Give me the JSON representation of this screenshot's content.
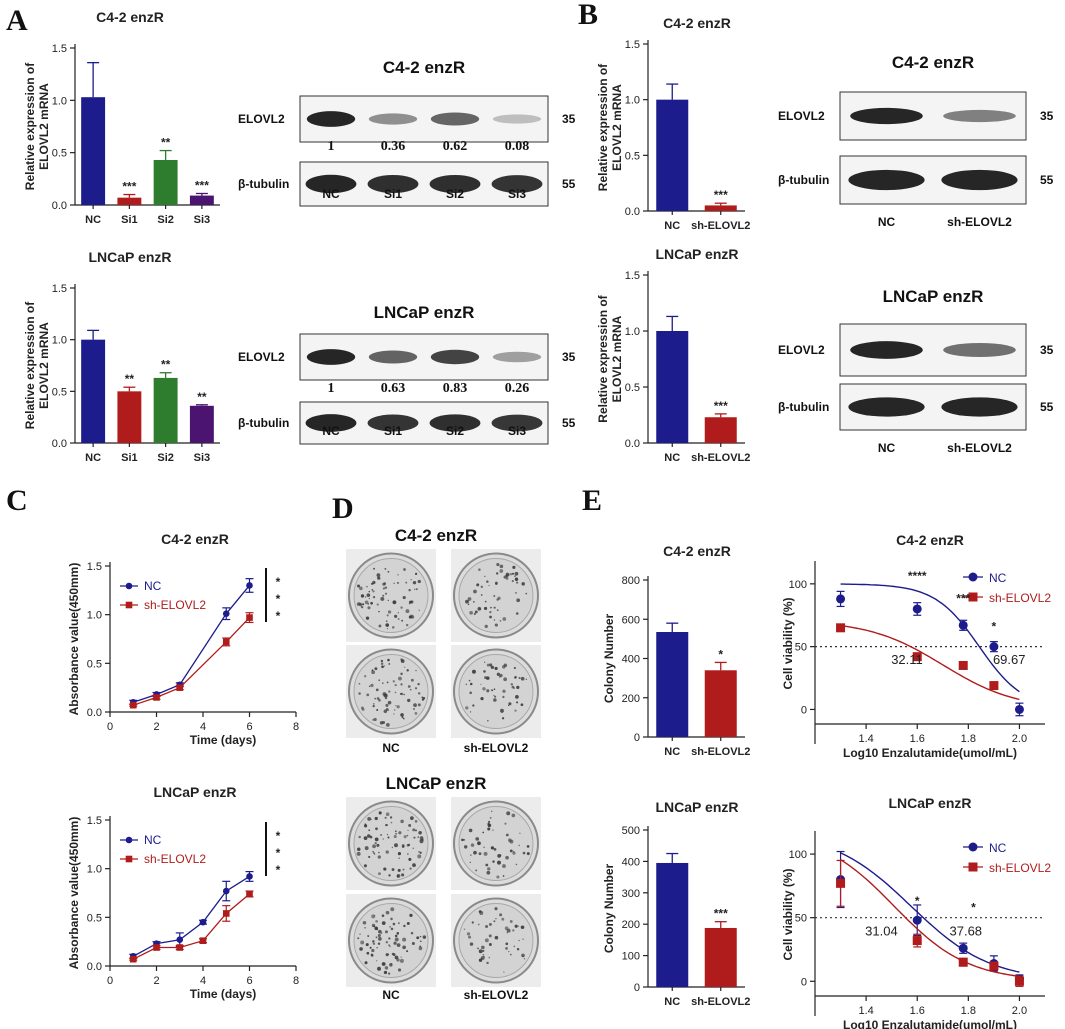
{
  "panel_letters": [
    "A",
    "B",
    "C",
    "D",
    "E"
  ],
  "colors": {
    "navy": "#1c1c8c",
    "red": "#b01c1c",
    "green": "#2e7d2e",
    "purple": "#4a1470",
    "blot": "#262626"
  },
  "chart_data": [
    {
      "id": "A1",
      "type": "bar",
      "title": "C4-2 enzR",
      "ylabel": "Relative expression of ELOVL2 mRNA",
      "categories": [
        "NC",
        "Si1",
        "Si2",
        "Si3"
      ],
      "values": [
        1.03,
        0.07,
        0.43,
        0.09
      ],
      "errors": [
        0.33,
        0.03,
        0.09,
        0.02
      ],
      "sig": [
        "",
        "***",
        "**",
        "***"
      ],
      "ylim": [
        0,
        1.5
      ],
      "yticks": [
        "0.0",
        "0.5",
        "1.0",
        "1.5"
      ],
      "colors": [
        "navy",
        "red",
        "green",
        "purple"
      ]
    },
    {
      "id": "A2",
      "type": "bar",
      "title": "LNCaP enzR",
      "ylabel": "Relative expression of ELOVL2 mRNA",
      "categories": [
        "NC",
        "Si1",
        "Si2",
        "Si3"
      ],
      "values": [
        1.0,
        0.5,
        0.63,
        0.36
      ],
      "errors": [
        0.09,
        0.04,
        0.05,
        0.01
      ],
      "sig": [
        "",
        "**",
        "**",
        "**"
      ],
      "ylim": [
        0,
        1.5
      ],
      "yticks": [
        "0.0",
        "0.5",
        "1.0",
        "1.5"
      ],
      "colors": [
        "navy",
        "red",
        "green",
        "purple"
      ]
    },
    {
      "id": "B1",
      "type": "bar",
      "title": "C4-2 enzR",
      "ylabel": "Relative expression of ELOVL2 mRNA",
      "categories": [
        "NC",
        "sh-ELOVL2"
      ],
      "values": [
        1.0,
        0.05
      ],
      "errors": [
        0.14,
        0.02
      ],
      "sig": [
        "",
        "***"
      ],
      "ylim": [
        0,
        1.5
      ],
      "yticks": [
        "0.0",
        "0.5",
        "1.0",
        "1.5"
      ],
      "colors": [
        "navy",
        "red"
      ]
    },
    {
      "id": "B2",
      "type": "bar",
      "title": "LNCaP enzR",
      "ylabel": "Relative expression of ELOVL2 mRNA",
      "categories": [
        "NC",
        "sh-ELOVL2"
      ],
      "values": [
        1.0,
        0.23
      ],
      "errors": [
        0.13,
        0.03
      ],
      "sig": [
        "",
        "***"
      ],
      "ylim": [
        0,
        1.5
      ],
      "yticks": [
        "0.0",
        "0.5",
        "1.0",
        "1.5"
      ],
      "colors": [
        "navy",
        "red"
      ]
    },
    {
      "id": "C1",
      "type": "line",
      "title": "C4-2 enzR",
      "xlabel": "Time (days)",
      "ylabel": "Absorbance value(450mm)",
      "x": [
        1,
        2,
        3,
        5,
        6
      ],
      "xlim": [
        0,
        8
      ],
      "xticks": [
        "0",
        "2",
        "4",
        "6",
        "8"
      ],
      "ylim": [
        0,
        1.5
      ],
      "yticks": [
        "0.0",
        "0.5",
        "1.0",
        "1.5"
      ],
      "series": [
        {
          "name": "NC",
          "values": [
            0.1,
            0.18,
            0.28,
            1.01,
            1.3
          ],
          "errors": [
            0.02,
            0.02,
            0.02,
            0.06,
            0.07
          ],
          "color": "navy",
          "marker": "circle"
        },
        {
          "name": "sh-ELOVL2",
          "values": [
            0.07,
            0.15,
            0.25,
            0.72,
            0.97
          ],
          "errors": [
            0.01,
            0.02,
            0.02,
            0.04,
            0.05
          ],
          "color": "red",
          "marker": "square"
        }
      ],
      "sig": "***"
    },
    {
      "id": "C2",
      "type": "line",
      "title": "LNCaP enzR",
      "xlabel": "Time (days)",
      "ylabel": "Absorbance value(450mm)",
      "x": [
        1,
        2,
        3,
        4,
        5,
        6
      ],
      "xlim": [
        0,
        8
      ],
      "xticks": [
        "0",
        "2",
        "4",
        "6",
        "8"
      ],
      "ylim": [
        0,
        1.5
      ],
      "yticks": [
        "0.0",
        "0.5",
        "1.0",
        "1.5"
      ],
      "series": [
        {
          "name": "NC",
          "values": [
            0.1,
            0.23,
            0.27,
            0.45,
            0.77,
            0.92
          ],
          "errors": [
            0.02,
            0.02,
            0.07,
            0.02,
            0.1,
            0.05
          ],
          "color": "navy",
          "marker": "circle"
        },
        {
          "name": "sh-ELOVL2",
          "values": [
            0.07,
            0.19,
            0.19,
            0.26,
            0.54,
            0.74
          ],
          "errors": [
            0.01,
            0.02,
            0.02,
            0.02,
            0.08,
            0.03
          ],
          "color": "red",
          "marker": "square"
        }
      ],
      "sig": "***"
    },
    {
      "id": "E1",
      "type": "bar",
      "title": "C4-2 enzR",
      "ylabel": "Colony Number",
      "categories": [
        "NC",
        "sh-ELOVL2"
      ],
      "values": [
        535,
        340
      ],
      "errors": [
        45,
        40
      ],
      "sig": [
        "",
        "*"
      ],
      "ylim": [
        0,
        800
      ],
      "yticks": [
        "0",
        "200",
        "400",
        "600",
        "800"
      ],
      "colors": [
        "navy",
        "red"
      ]
    },
    {
      "id": "E2",
      "type": "bar",
      "title": "LNCaP enzR",
      "ylabel": "Colony Number",
      "categories": [
        "NC",
        "sh-ELOVL2"
      ],
      "values": [
        395,
        188
      ],
      "errors": [
        30,
        20
      ],
      "sig": [
        "",
        "***"
      ],
      "ylim": [
        0,
        500
      ],
      "yticks": [
        "0",
        "100",
        "200",
        "300",
        "400",
        "500"
      ],
      "colors": [
        "navy",
        "red"
      ]
    },
    {
      "id": "E3",
      "type": "scatter",
      "title": "C4-2 enzR",
      "xlabel": "Log10 Enzalutamide(umol/mL)",
      "ylabel": "Cell viability (%)",
      "xlim": [
        1.2,
        2.1
      ],
      "xticks": [
        "1.4",
        "1.6",
        "1.8",
        "2.0"
      ],
      "ylim": [
        -10,
        115
      ],
      "yticks": [
        "0",
        "50",
        "100"
      ],
      "refline": 50,
      "series": [
        {
          "name": "NC",
          "x": [
            1.3,
            1.6,
            1.78,
            1.9,
            2.0
          ],
          "values": [
            88,
            80,
            67,
            50,
            0
          ],
          "errors": [
            6,
            5,
            4,
            4,
            5
          ],
          "color": "navy",
          "marker": "circle",
          "fit": {
            "top": 100,
            "bottom": 0,
            "logic50": 1.843,
            "hill": 5
          }
        },
        {
          "name": "sh-ELOVL2",
          "x": [
            1.3,
            1.6,
            1.78,
            1.9
          ],
          "values": [
            65,
            42,
            35,
            19
          ],
          "errors": [
            2,
            2,
            2,
            2
          ],
          "color": "red",
          "marker": "square",
          "fit": {
            "top": 71,
            "bottom": 0,
            "logic50": 1.7,
            "hill": 3
          }
        }
      ],
      "sig": [
        {
          "x": 1.6,
          "y": 103,
          "text": "****"
        },
        {
          "x": 1.78,
          "y": 85,
          "text": "***"
        },
        {
          "x": 1.9,
          "y": 63,
          "text": "*"
        }
      ],
      "ic50": [
        {
          "x": 1.56,
          "y": 36,
          "text": "32.11"
        },
        {
          "x": 1.96,
          "y": 36,
          "text": "69.67"
        }
      ]
    },
    {
      "id": "E4",
      "type": "scatter",
      "title": "LNCaP enzR",
      "xlabel": "Log10 Enzalutamide(umol/mL)",
      "ylabel": "Cell viability (%)",
      "xlim": [
        1.2,
        2.1
      ],
      "xticks": [
        "1.4",
        "1.6",
        "1.8",
        "2.0"
      ],
      "ylim": [
        -10,
        115
      ],
      "yticks": [
        "0",
        "50",
        "100"
      ],
      "refline": 50,
      "series": [
        {
          "name": "NC",
          "x": [
            1.3,
            1.6,
            1.78,
            1.9,
            2.0
          ],
          "values": [
            80,
            48,
            26,
            14,
            2
          ],
          "errors": [
            22,
            12,
            4,
            6,
            3
          ],
          "color": "navy",
          "marker": "circle",
          "fit": {
            "top": 118,
            "bottom": 0,
            "logic50": 1.576,
            "hill": 2.8
          }
        },
        {
          "name": "sh-ELOVL2",
          "x": [
            1.3,
            1.6,
            1.78,
            1.9,
            2.0
          ],
          "values": [
            77,
            32,
            15,
            12,
            0
          ],
          "errors": [
            18,
            5,
            3,
            3,
            4
          ],
          "color": "red",
          "marker": "square",
          "fit": {
            "top": 118,
            "bottom": 0,
            "logic50": 1.51,
            "hill": 3
          }
        }
      ],
      "sig": [
        {
          "x": 1.6,
          "y": 60,
          "text": "*"
        },
        {
          "x": 1.82,
          "y": 55,
          "text": "*"
        }
      ],
      "ic50": [
        {
          "x": 1.46,
          "y": 36,
          "text": "31.04"
        },
        {
          "x": 1.79,
          "y": 36,
          "text": "37.68"
        }
      ]
    }
  ],
  "blots": [
    {
      "id": "WB1",
      "title": "C4-2 enzR",
      "target": "ELOVL2",
      "target_kda": "35",
      "loading": "β-tubulin",
      "loading_kda": "55",
      "lanes": [
        "NC",
        "Si1",
        "Si2",
        "Si3"
      ],
      "quant": [
        "1",
        "0.36",
        "0.62",
        "0.08"
      ],
      "target_intensity": [
        1,
        0.36,
        0.62,
        0.08
      ],
      "loading_intensity": [
        1,
        0.95,
        0.95,
        0.92
      ]
    },
    {
      "id": "WB2",
      "title": "LNCaP enzR",
      "target": "ELOVL2",
      "target_kda": "35",
      "loading": "β-tubulin",
      "loading_kda": "55",
      "lanes": [
        "NC",
        "Si1",
        "Si2",
        "Si3"
      ],
      "quant": [
        "1",
        "0.63",
        "0.83",
        "0.26"
      ],
      "target_intensity": [
        1,
        0.63,
        0.83,
        0.26
      ],
      "loading_intensity": [
        1,
        0.92,
        0.95,
        0.9
      ]
    },
    {
      "id": "WB3",
      "title": "C4-2 enzR",
      "target": "ELOVL2",
      "target_kda": "35",
      "loading": "β-tubulin",
      "loading_kda": "55",
      "lanes": [
        "NC",
        "sh-ELOVL2"
      ],
      "quant": [],
      "target_intensity": [
        1,
        0.45
      ],
      "loading_intensity": [
        1,
        1
      ]
    },
    {
      "id": "WB4",
      "title": "LNCaP enzR",
      "target": "ELOVL2",
      "target_kda": "35",
      "loading": "β-tubulin",
      "loading_kda": "55",
      "lanes": [
        "NC",
        "sh-ELOVL2"
      ],
      "quant": [],
      "target_intensity": [
        1,
        0.55
      ],
      "loading_intensity": [
        1,
        1
      ]
    }
  ],
  "colony_plates": [
    {
      "title": "C4-2 enzR",
      "lanes": [
        "NC",
        "sh-ELOVL2"
      ],
      "density": [
        0.85,
        0.6
      ]
    },
    {
      "title": "LNCaP enzR",
      "lanes": [
        "NC",
        "sh-ELOVL2"
      ],
      "density": [
        0.9,
        0.55
      ]
    }
  ]
}
